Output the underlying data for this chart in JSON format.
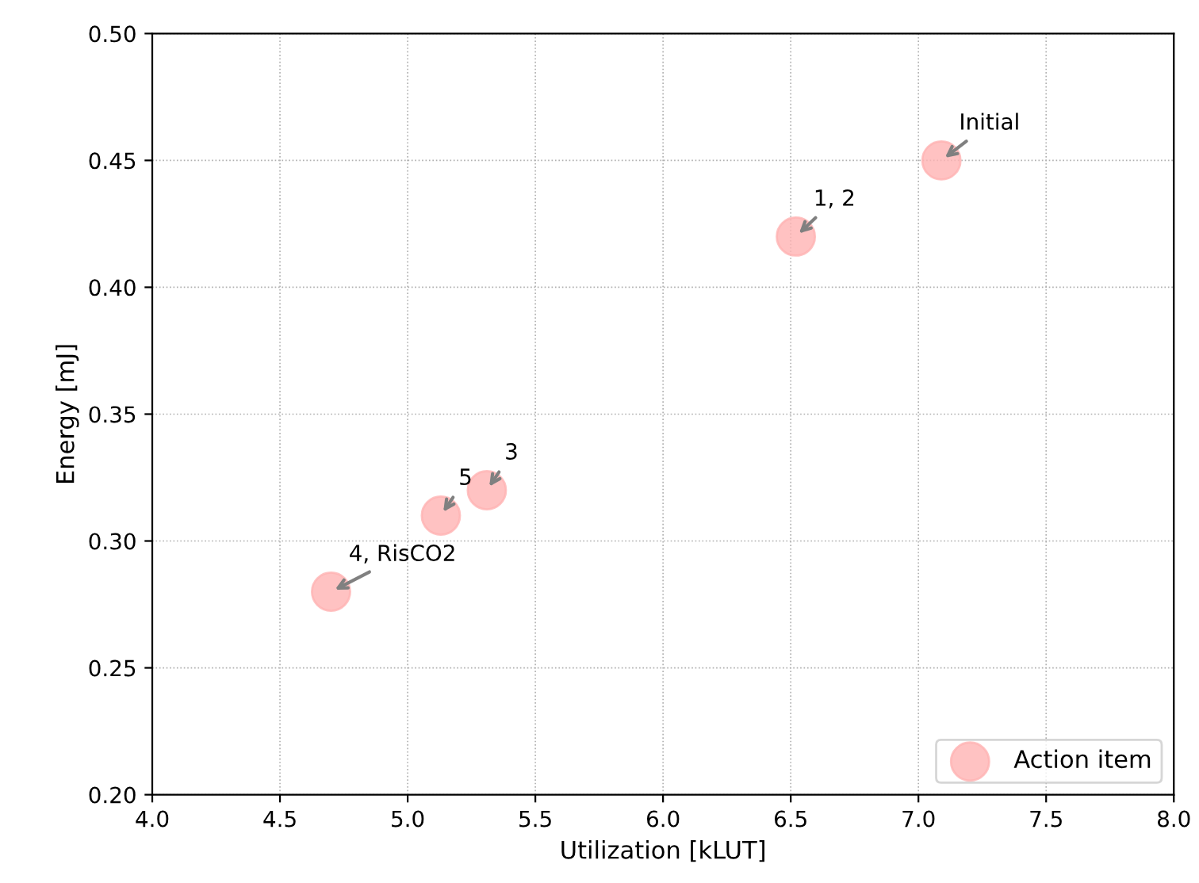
{
  "chart_data": {
    "type": "scatter",
    "xlabel": "Utilization [kLUT]",
    "ylabel": "Energy [mJ]",
    "x": [
      7.09,
      6.52,
      5.31,
      5.13,
      4.7
    ],
    "series": [
      {
        "name": "Action item",
        "color": "#ffb3b3",
        "values": [
          0.45,
          0.42,
          0.32,
          0.31,
          0.28
        ]
      }
    ],
    "annotations": [
      {
        "text": "Initial",
        "x": 7.09,
        "y": 0.45
      },
      {
        "text": "1, 2",
        "x": 6.52,
        "y": 0.42
      },
      {
        "text": "3",
        "x": 5.31,
        "y": 0.32
      },
      {
        "text": "5",
        "x": 5.13,
        "y": 0.31
      },
      {
        "text": "4, RisCO2",
        "x": 4.7,
        "y": 0.28
      }
    ],
    "xlim": [
      4.0,
      8.0
    ],
    "xticks": [
      {
        "value": 4,
        "label": "4.0"
      },
      {
        "value": 4.5,
        "label": "4.5"
      },
      {
        "value": 5,
        "label": "5.0"
      },
      {
        "value": 5.5,
        "label": "5.5"
      },
      {
        "value": 6,
        "label": "6.0"
      },
      {
        "value": 6.5,
        "label": "6.5"
      },
      {
        "value": 7,
        "label": "7.0"
      },
      {
        "value": 7.5,
        "label": "7.5"
      },
      {
        "value": 8,
        "label": "8.0"
      }
    ],
    "ylim": [
      0.2,
      0.5
    ],
    "yticks": [
      {
        "value": 0.2,
        "label": "0.20"
      },
      {
        "value": 0.25,
        "label": "0.25"
      },
      {
        "value": 0.3,
        "label": "0.30"
      },
      {
        "value": 0.35,
        "label": "0.35"
      },
      {
        "value": 0.4,
        "label": "0.40"
      },
      {
        "value": 0.45,
        "label": "0.45"
      },
      {
        "value": 0.5,
        "label": "0.50"
      }
    ],
    "grid": true,
    "legend": "bottom right",
    "marker": "circle"
  }
}
